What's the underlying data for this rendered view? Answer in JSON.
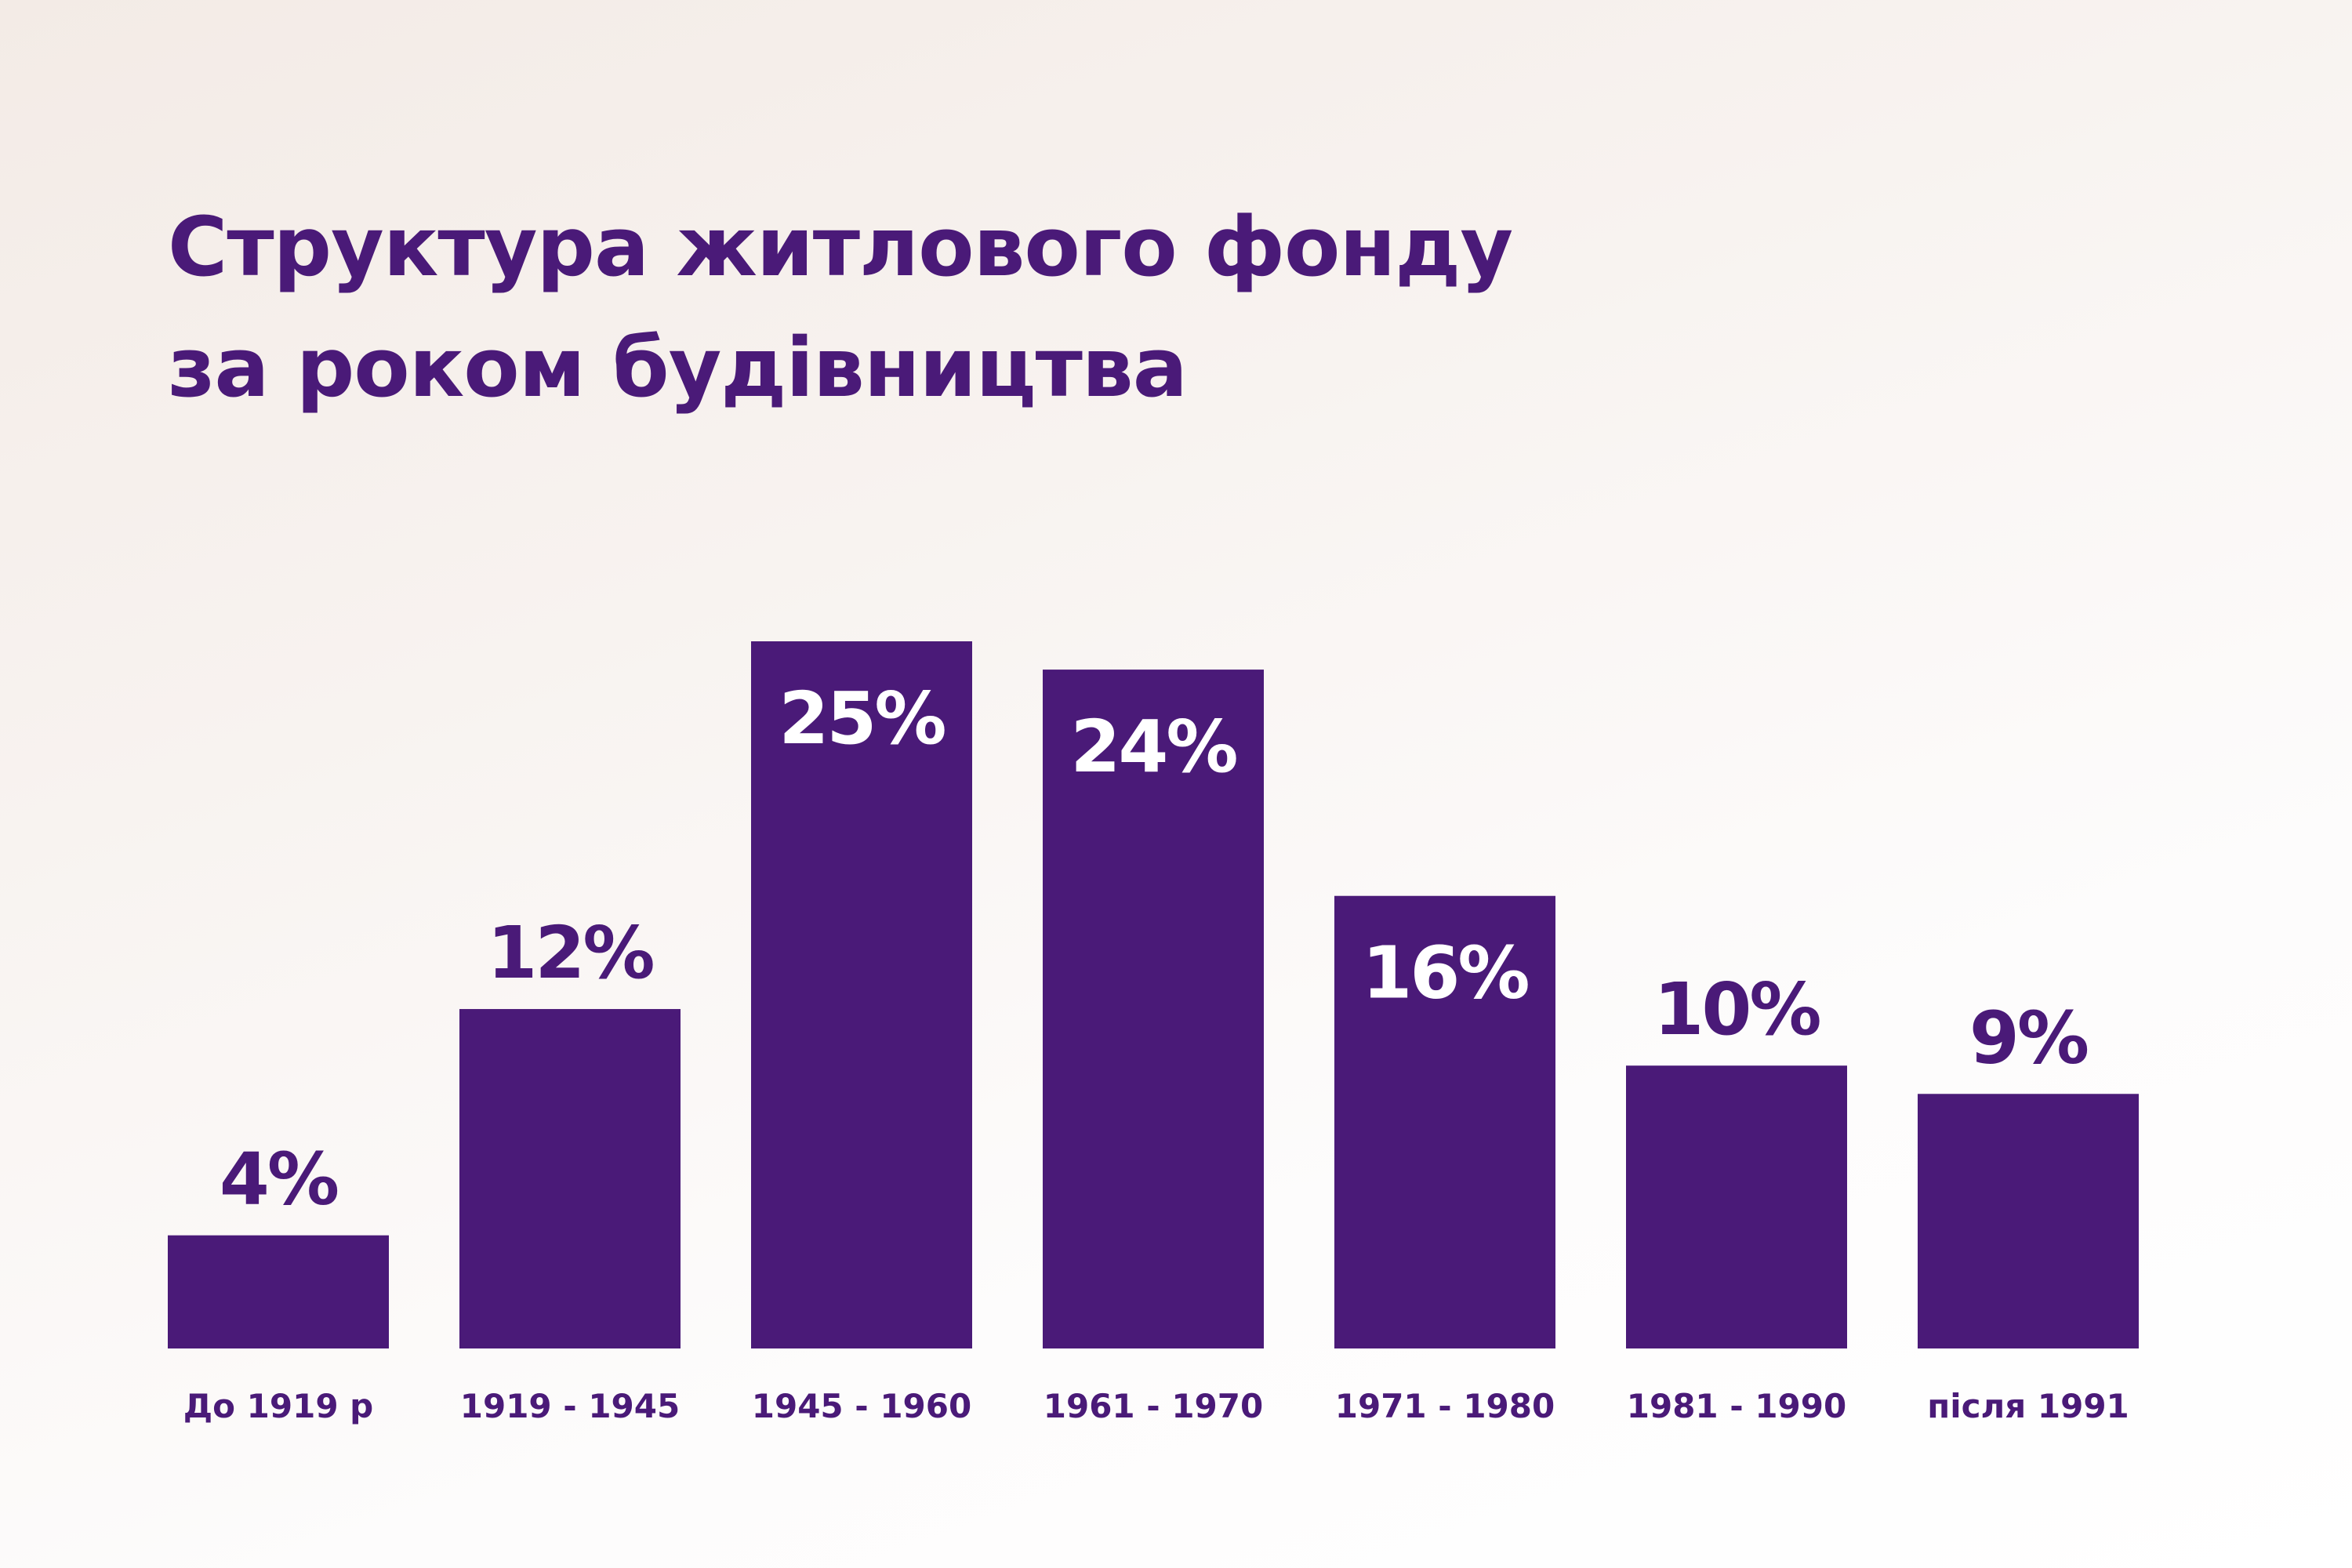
{
  "title_lines": [
    "Структура житлового фонду",
    "за роком будівництва"
  ],
  "colors": {
    "bar": "#4a1a78",
    "label_outside": "#4a1a78",
    "label_inside": "#ffffff",
    "title": "#4a1a78"
  },
  "chart_data": {
    "type": "bar",
    "title": "Структура житлового фонду за роком будівництва",
    "xlabel": "",
    "ylabel": "",
    "categories": [
      "До 1919 р",
      "1919 - 1945",
      "1945 - 1960",
      "1961 - 1970",
      "1971 - 1980",
      "1981 - 1990",
      "після 1991"
    ],
    "values": [
      4,
      12,
      25,
      24,
      16,
      10,
      9
    ],
    "data_labels": [
      "4%",
      "12%",
      "25%",
      "24%",
      "16%",
      "10%",
      "9%"
    ],
    "label_position": [
      "outside",
      "outside",
      "inside",
      "inside",
      "inside",
      "outside",
      "outside"
    ],
    "unit": "%",
    "ylim": [
      0,
      25
    ],
    "grid": false,
    "legend": "none"
  }
}
